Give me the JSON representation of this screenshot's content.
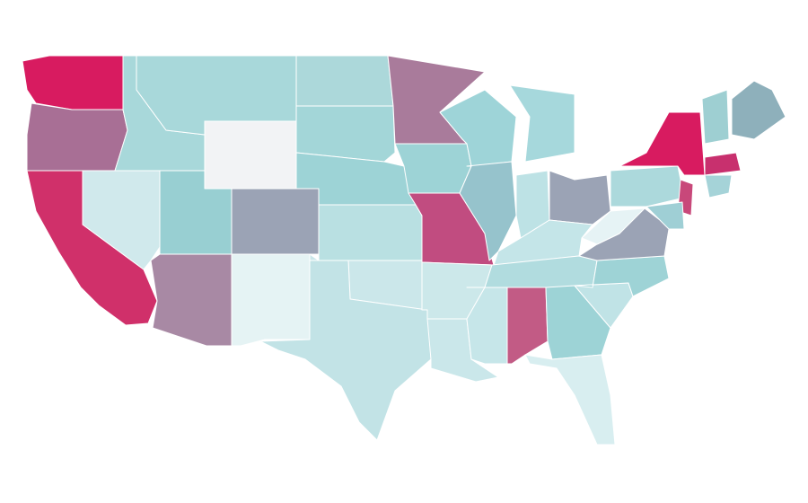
{
  "map": {
    "regions": [
      {
        "color": "#d81b60"
      },
      {
        "color": "#a86f95"
      },
      {
        "color": "#d0306a"
      },
      {
        "color": "#d0e9ec"
      },
      {
        "color": "#a8d8da"
      },
      {
        "color": "#a8d8da"
      },
      {
        "color": "#f2f3f5"
      },
      {
        "color": "#98cfd2"
      },
      {
        "color": "#9ba3b5"
      },
      {
        "color": "#a889a4"
      },
      {
        "color": "#e5f3f4"
      },
      {
        "color": "#acd8da"
      },
      {
        "color": "#a3d6d8"
      },
      {
        "color": "#9dd3d6"
      },
      {
        "color": "#b9e0e2"
      },
      {
        "color": "#cbe7ea"
      },
      {
        "color": "#c2e3e6"
      },
      {
        "color": "#a97b9b"
      },
      {
        "color": "#9dd3d6"
      },
      {
        "color": "#c14c80"
      },
      {
        "color": "#cce8ea"
      },
      {
        "color": "#cae7ea"
      },
      {
        "color": "#9ed4d8"
      },
      {
        "color": "#96c3cc"
      },
      {
        "color": "#a6d8dc"
      },
      {
        "color": "#bde2e5"
      },
      {
        "color": "#9ba3b5"
      },
      {
        "color": "#c4e5e8"
      },
      {
        "color": "#b1dcdf"
      },
      {
        "color": "#c6e6e9"
      },
      {
        "color": "#c25b85"
      },
      {
        "color": "#9dd3d6"
      },
      {
        "color": "#d8eef0"
      },
      {
        "color": "#c0e3e6"
      },
      {
        "color": "#9ed3d6"
      },
      {
        "color": "#9ba3b5"
      },
      {
        "color": "#e6f3f5"
      },
      {
        "color": "#acd9dc"
      },
      {
        "color": "#d81b60"
      },
      {
        "color": "#9ecfd2"
      },
      {
        "color": "#8eb0bb"
      },
      {
        "color": "#c8306e"
      },
      {
        "color": "#a5d3d8"
      },
      {
        "color": "#c8487a"
      },
      {
        "color": "#9fcfd5"
      }
    ]
  }
}
